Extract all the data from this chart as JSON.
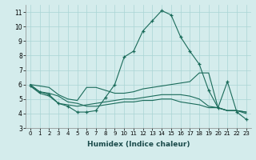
{
  "xlabel": "Humidex (Indice chaleur)",
  "x": [
    0,
    1,
    2,
    3,
    4,
    5,
    6,
    7,
    8,
    9,
    10,
    11,
    12,
    13,
    14,
    15,
    16,
    17,
    18,
    19,
    20,
    21,
    22,
    23
  ],
  "line1": [
    5.9,
    5.5,
    5.3,
    4.7,
    4.5,
    4.1,
    4.1,
    4.2,
    5.1,
    6.0,
    7.9,
    8.3,
    9.7,
    10.4,
    11.1,
    10.8,
    9.3,
    8.3,
    7.4,
    5.6,
    4.4,
    6.2,
    4.1,
    3.6
  ],
  "line2": [
    6.0,
    5.9,
    5.8,
    5.3,
    5.0,
    4.9,
    5.8,
    5.8,
    5.6,
    5.4,
    5.4,
    5.5,
    5.7,
    5.8,
    5.9,
    6.0,
    6.1,
    6.2,
    6.8,
    6.8,
    4.4,
    4.2,
    4.2,
    4.1
  ],
  "line3": [
    5.9,
    5.4,
    5.2,
    4.7,
    4.6,
    4.5,
    4.6,
    4.7,
    4.8,
    4.9,
    5.0,
    5.0,
    5.1,
    5.2,
    5.3,
    5.3,
    5.3,
    5.2,
    5.0,
    4.5,
    4.4,
    4.2,
    4.2,
    4.1
  ],
  "line4": [
    6.0,
    5.5,
    5.4,
    5.2,
    4.8,
    4.7,
    4.5,
    4.5,
    4.6,
    4.7,
    4.8,
    4.8,
    4.9,
    4.9,
    5.0,
    5.0,
    4.8,
    4.7,
    4.6,
    4.4,
    4.4,
    4.2,
    4.2,
    4.0
  ],
  "line_color": "#1a6b5a",
  "bg_color": "#d4ecec",
  "grid_color": "#aad4d4",
  "ylim": [
    3,
    11.5
  ],
  "yticks": [
    3,
    4,
    5,
    6,
    7,
    8,
    9,
    10,
    11
  ]
}
